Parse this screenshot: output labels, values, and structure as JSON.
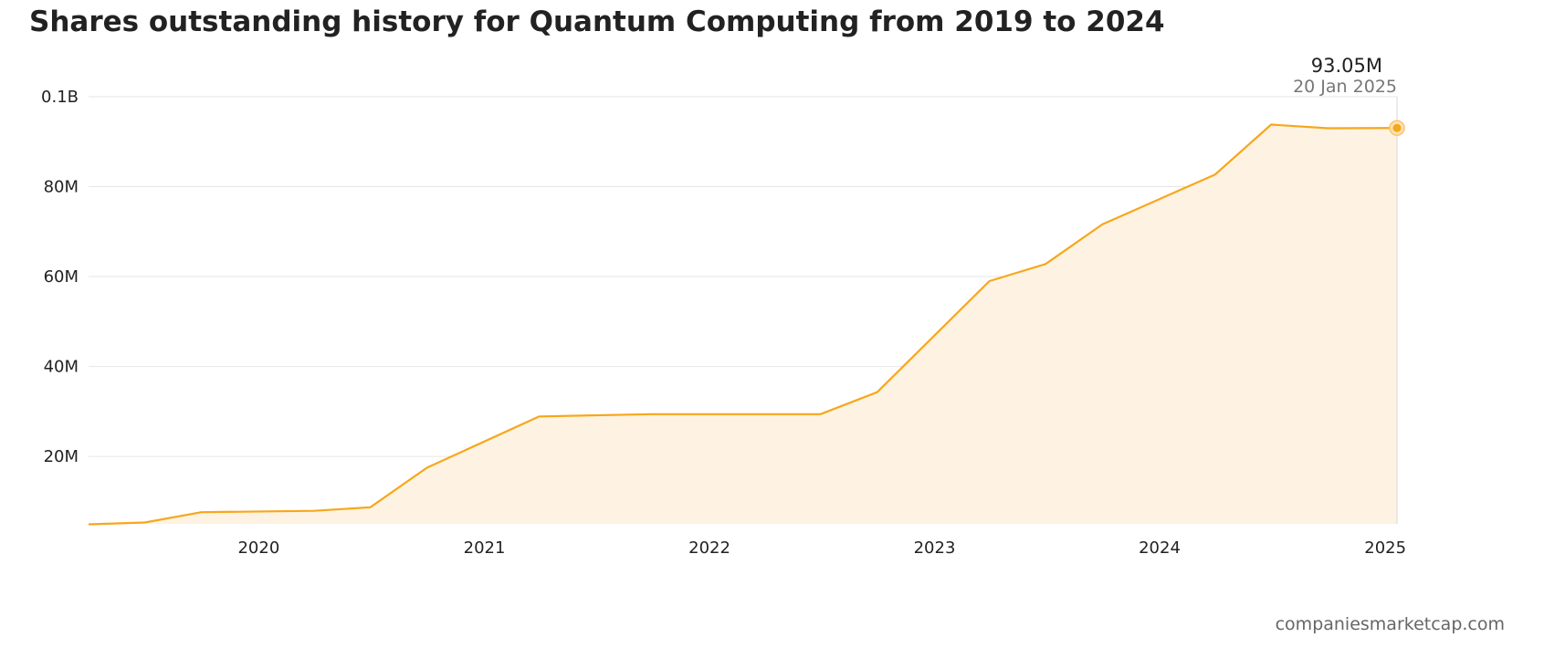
{
  "chart_data": {
    "type": "area",
    "title": "Shares outstanding history for Quantum Computing from 2019 to 2024",
    "xlabel": "",
    "ylabel": "",
    "x_ticks": [
      "2020",
      "2021",
      "2022",
      "2023",
      "2024",
      "2025"
    ],
    "y_ticks": [
      {
        "value": 20000000,
        "label": "20M"
      },
      {
        "value": 40000000,
        "label": "40M"
      },
      {
        "value": 60000000,
        "label": "60M"
      },
      {
        "value": 80000000,
        "label": "80M"
      },
      {
        "value": 100000000,
        "label": "0.1B"
      }
    ],
    "xlim": [
      "2019-03-31",
      "2025-01-20"
    ],
    "ylim": [
      5000000,
      100000000
    ],
    "grid": true,
    "series": [
      {
        "points": [
          {
            "x": "2019-03-31",
            "y": 4900000
          },
          {
            "x": "2019-06-30",
            "y": 5300000
          },
          {
            "x": "2019-09-30",
            "y": 7600000
          },
          {
            "x": "2020-03-31",
            "y": 7900000
          },
          {
            "x": "2020-06-30",
            "y": 8700000
          },
          {
            "x": "2020-09-30",
            "y": 17500000
          },
          {
            "x": "2021-03-31",
            "y": 28900000
          },
          {
            "x": "2021-09-30",
            "y": 29400000
          },
          {
            "x": "2022-06-30",
            "y": 29400000
          },
          {
            "x": "2022-09-30",
            "y": 34300000
          },
          {
            "x": "2023-03-31",
            "y": 59000000
          },
          {
            "x": "2023-06-30",
            "y": 62800000
          },
          {
            "x": "2023-09-30",
            "y": 71600000
          },
          {
            "x": "2024-03-31",
            "y": 82700000
          },
          {
            "x": "2024-06-30",
            "y": 93800000
          },
          {
            "x": "2024-09-30",
            "y": 93000000
          },
          {
            "x": "2025-01-20",
            "y": 93050000
          }
        ]
      }
    ],
    "tooltip": {
      "value": "93.05M",
      "date": "20 Jan 2025"
    },
    "colors": {
      "line": "#f7a71b",
      "fill": "#fef3e2",
      "grid": "#e6e6e6"
    }
  },
  "watermark": "companiesmarketcap.com"
}
